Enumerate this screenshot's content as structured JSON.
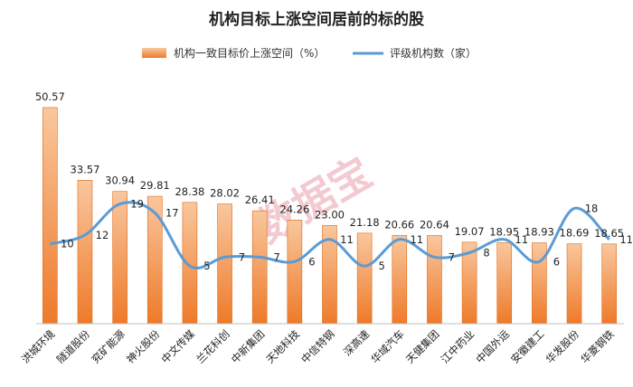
{
  "chart_data": {
    "type": "bar+line",
    "title": "机构目标上涨空间居前的标的股",
    "watermark": "数据宝",
    "categories": [
      "洪城环境",
      "隧道股份",
      "兖矿能源",
      "神火股份",
      "中文传媒",
      "兰花科创",
      "中新集团",
      "天地科技",
      "中信特钢",
      "深高速",
      "华域汽车",
      "天健集团",
      "江中药业",
      "中国外运",
      "安徽建工",
      "华发股份",
      "华菱钢铁"
    ],
    "series": [
      {
        "name": "机构一致目标价上涨空间（%）",
        "type": "bar",
        "values": [
          50.57,
          33.57,
          30.94,
          29.81,
          28.38,
          28.02,
          26.41,
          24.26,
          23.0,
          21.18,
          20.66,
          20.64,
          19.07,
          18.95,
          18.93,
          18.69,
          18.65
        ],
        "labels": [
          "50.57",
          "33.57",
          "30.94",
          "29.81",
          "28.38",
          "28.02",
          "26.41",
          "24.26",
          "23.00",
          "21.18",
          "20.66",
          "20.64",
          "19.07",
          "18.95",
          "18.93",
          "18.69",
          "18.65"
        ]
      },
      {
        "name": "评级机构数（家）",
        "type": "line",
        "values": [
          10,
          12,
          19,
          17,
          5,
          7,
          7,
          6,
          11,
          5,
          11,
          7,
          8,
          11,
          6,
          18,
          11
        ],
        "labels": [
          "10",
          "12",
          "19",
          "17",
          "5",
          "7",
          "7",
          "6",
          "11",
          "5",
          "11",
          "7",
          "8",
          "11",
          "6",
          "18",
          "11"
        ]
      }
    ],
    "colors": {
      "bar_top": "#f9c79e",
      "bar_bottom": "#ee7a2a",
      "bar_edge": "#e06a18",
      "line": "#5b9bd5",
      "axis": "#bfbfbf"
    },
    "bar_ylim": [
      0,
      55
    ],
    "line_ylim": [
      -8,
      45
    ]
  }
}
